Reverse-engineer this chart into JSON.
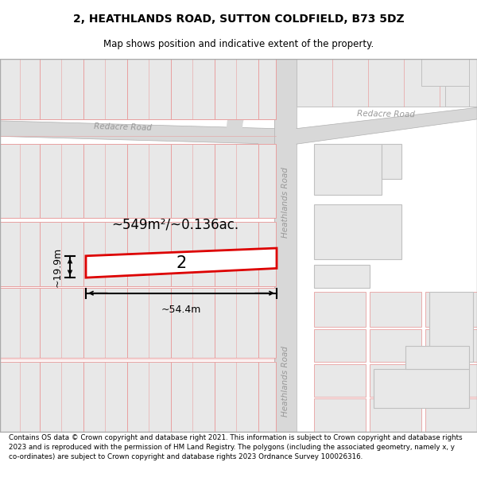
{
  "title": "2, HEATHLANDS ROAD, SUTTON COLDFIELD, B73 5DZ",
  "subtitle": "Map shows position and indicative extent of the property.",
  "footer": "Contains OS data © Crown copyright and database right 2021. This information is subject to Crown copyright and database rights 2023 and is reproduced with the permission of HM Land Registry. The polygons (including the associated geometry, namely x, y co-ordinates) are subject to Crown copyright and database rights 2023 Ordnance Survey 100026316.",
  "area_label": "~549m²/~0.136ac.",
  "width_label": "~54.4m",
  "height_label": "~19.9m",
  "plot_number": "2",
  "road_label_redacre": "Redacre Road",
  "road_label_heathlands": "Heathlands Road",
  "road_fill": "#d8d8d8",
  "road_outline": "#b0b0b0",
  "bld_gray_fill": "#e8e8e8",
  "bld_pink_edge": "#e8a0a0",
  "bld_gray_edge": "#c0c0c0",
  "plot_edge": "#dd0000",
  "map_bg": "#ffffff",
  "title_fontsize": 10,
  "subtitle_fontsize": 8.5,
  "footer_fontsize": 6.3
}
